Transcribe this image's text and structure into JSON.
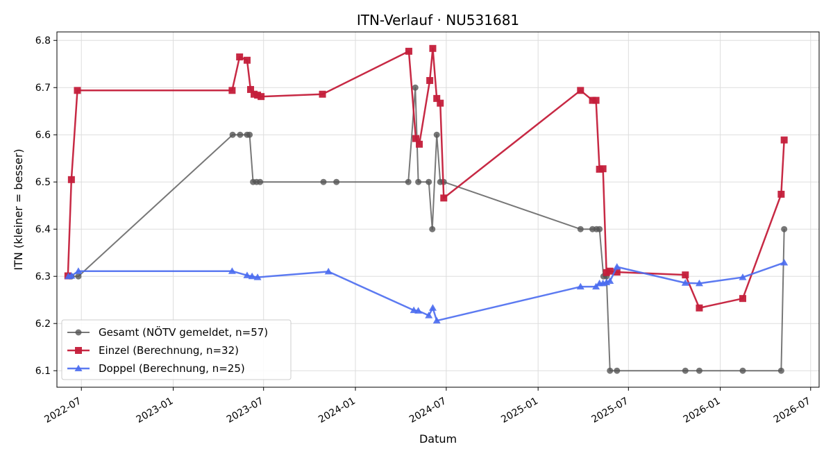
{
  "chart_data": {
    "type": "line",
    "title": "ITN-Verlauf · NU531681",
    "xlabel": "Datum",
    "ylabel": "ITN  (kleiner = besser)",
    "x_axis_type": "date",
    "xlim": [
      "2022-05-13",
      "2026-07-18"
    ],
    "ylim": [
      6.065,
      6.818
    ],
    "x_ticks": [
      "2022-07-01",
      "2023-01-01",
      "2023-07-01",
      "2024-01-01",
      "2024-07-01",
      "2025-01-01",
      "2025-07-01",
      "2026-01-01",
      "2026-07-01"
    ],
    "x_tick_labels": [
      "2022-07",
      "2023-01",
      "2023-07",
      "2024-01",
      "2024-07",
      "2025-01",
      "2025-07",
      "2026-01",
      "2026-07"
    ],
    "y_ticks": [
      6.1,
      6.2,
      6.3,
      6.4,
      6.5,
      6.6,
      6.7,
      6.8
    ],
    "y_tick_labels": [
      "6.1",
      "6.2",
      "6.3",
      "6.4",
      "6.5",
      "6.6",
      "6.7",
      "6.8"
    ],
    "grid": true,
    "legend_position": "lower-left",
    "series": [
      {
        "name": "Gesamt (NÖTV gemeldet, n=57)",
        "color": "#555555",
        "marker": "circle",
        "points": [
          {
            "x": "2022-06-08",
            "y": 6.3
          },
          {
            "x": "2022-06-11",
            "y": 6.3
          },
          {
            "x": "2022-06-25",
            "y": 6.3
          },
          {
            "x": "2023-04-30",
            "y": 6.6
          },
          {
            "x": "2023-05-15",
            "y": 6.6
          },
          {
            "x": "2023-05-29",
            "y": 6.6
          },
          {
            "x": "2023-06-03",
            "y": 6.6
          },
          {
            "x": "2023-06-10",
            "y": 6.5
          },
          {
            "x": "2023-06-17",
            "y": 6.5
          },
          {
            "x": "2023-06-24",
            "y": 6.5
          },
          {
            "x": "2023-10-29",
            "y": 6.5
          },
          {
            "x": "2023-11-24",
            "y": 6.5
          },
          {
            "x": "2024-04-16",
            "y": 6.5
          },
          {
            "x": "2024-04-30",
            "y": 6.7
          },
          {
            "x": "2024-05-06",
            "y": 6.5
          },
          {
            "x": "2024-05-27",
            "y": 6.5
          },
          {
            "x": "2024-06-03",
            "y": 6.4
          },
          {
            "x": "2024-06-12",
            "y": 6.6
          },
          {
            "x": "2024-06-19",
            "y": 6.5
          },
          {
            "x": "2024-06-26",
            "y": 6.5
          },
          {
            "x": "2025-03-27",
            "y": 6.4
          },
          {
            "x": "2025-04-20",
            "y": 6.4
          },
          {
            "x": "2025-04-28",
            "y": 6.4
          },
          {
            "x": "2025-05-04",
            "y": 6.4
          },
          {
            "x": "2025-05-12",
            "y": 6.3
          },
          {
            "x": "2025-05-18",
            "y": 6.3
          },
          {
            "x": "2025-05-25",
            "y": 6.1
          },
          {
            "x": "2025-06-08",
            "y": 6.1
          },
          {
            "x": "2025-10-23",
            "y": 6.1
          },
          {
            "x": "2025-11-20",
            "y": 6.1
          },
          {
            "x": "2026-02-15",
            "y": 6.1
          },
          {
            "x": "2026-05-03",
            "y": 6.1
          },
          {
            "x": "2026-05-09",
            "y": 6.4
          }
        ]
      },
      {
        "name": "Einzel (Berechnung, n=32)",
        "color": "#c41e3a",
        "marker": "square",
        "points": [
          {
            "x": "2022-06-04",
            "y": 6.301
          },
          {
            "x": "2022-06-11",
            "y": 6.505
          },
          {
            "x": "2022-06-23",
            "y": 6.694
          },
          {
            "x": "2023-04-29",
            "y": 6.694
          },
          {
            "x": "2023-05-14",
            "y": 6.765
          },
          {
            "x": "2023-05-29",
            "y": 6.758
          },
          {
            "x": "2023-06-05",
            "y": 6.696
          },
          {
            "x": "2023-06-12",
            "y": 6.686
          },
          {
            "x": "2023-06-19",
            "y": 6.684
          },
          {
            "x": "2023-06-26",
            "y": 6.681
          },
          {
            "x": "2023-10-27",
            "y": 6.686
          },
          {
            "x": "2024-04-17",
            "y": 6.777
          },
          {
            "x": "2024-05-01",
            "y": 6.592
          },
          {
            "x": "2024-05-08",
            "y": 6.58
          },
          {
            "x": "2024-05-29",
            "y": 6.715
          },
          {
            "x": "2024-06-04",
            "y": 6.783
          },
          {
            "x": "2024-06-12",
            "y": 6.677
          },
          {
            "x": "2024-06-19",
            "y": 6.667
          },
          {
            "x": "2024-06-26",
            "y": 6.466
          },
          {
            "x": "2025-03-27",
            "y": 6.694
          },
          {
            "x": "2025-04-20",
            "y": 6.673
          },
          {
            "x": "2025-04-27",
            "y": 6.673
          },
          {
            "x": "2025-05-04",
            "y": 6.527
          },
          {
            "x": "2025-05-11",
            "y": 6.528
          },
          {
            "x": "2025-05-18",
            "y": 6.308
          },
          {
            "x": "2025-05-25",
            "y": 6.311
          },
          {
            "x": "2025-06-08",
            "y": 6.309
          },
          {
            "x": "2025-10-23",
            "y": 6.303
          },
          {
            "x": "2025-11-20",
            "y": 6.233
          },
          {
            "x": "2026-02-15",
            "y": 6.253
          },
          {
            "x": "2026-05-03",
            "y": 6.474
          },
          {
            "x": "2026-05-09",
            "y": 6.589
          }
        ]
      },
      {
        "name": "Doppel (Berechnung, n=25)",
        "color": "#4a6cf0",
        "marker": "triangle",
        "points": [
          {
            "x": "2022-06-05",
            "y": 6.3
          },
          {
            "x": "2022-06-11",
            "y": 6.301
          },
          {
            "x": "2022-06-25",
            "y": 6.311
          },
          {
            "x": "2023-04-29",
            "y": 6.311
          },
          {
            "x": "2023-05-29",
            "y": 6.302
          },
          {
            "x": "2023-06-08",
            "y": 6.3
          },
          {
            "x": "2023-06-19",
            "y": 6.298
          },
          {
            "x": "2023-11-08",
            "y": 6.31
          },
          {
            "x": "2024-04-27",
            "y": 6.228
          },
          {
            "x": "2024-05-06",
            "y": 6.227
          },
          {
            "x": "2024-05-27",
            "y": 6.217
          },
          {
            "x": "2024-06-04",
            "y": 6.233
          },
          {
            "x": "2024-06-12",
            "y": 6.206
          },
          {
            "x": "2025-03-27",
            "y": 6.278
          },
          {
            "x": "2025-04-27",
            "y": 6.278
          },
          {
            "x": "2025-05-04",
            "y": 6.285
          },
          {
            "x": "2025-05-11",
            "y": 6.285
          },
          {
            "x": "2025-05-18",
            "y": 6.287
          },
          {
            "x": "2025-05-25",
            "y": 6.29
          },
          {
            "x": "2025-06-08",
            "y": 6.32
          },
          {
            "x": "2025-10-23",
            "y": 6.286
          },
          {
            "x": "2025-11-20",
            "y": 6.285
          },
          {
            "x": "2026-02-15",
            "y": 6.298
          },
          {
            "x": "2026-05-09",
            "y": 6.329
          }
        ]
      }
    ]
  }
}
